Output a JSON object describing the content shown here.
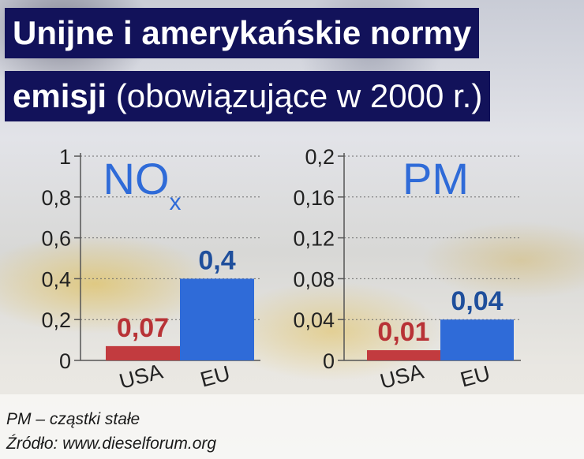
{
  "title": {
    "line1": "Unijne i amerykańskie normy",
    "line2_bold": "emisji",
    "line2_rest": "(obowiązujące w 2000 r.)"
  },
  "colors": {
    "title_bg": "#12125a",
    "usa_bar": "#c23b3f",
    "eu_bar": "#2f6bd8",
    "usa_label": "#b83236",
    "eu_label": "#1f4f9c",
    "chart_title": "#2f6bd8"
  },
  "chart_data": [
    {
      "type": "bar",
      "title": "NO",
      "title_subscript": "x",
      "categories": [
        "USA",
        "EU"
      ],
      "values": [
        0.07,
        0.4
      ],
      "value_labels": [
        "0,07",
        "0,4"
      ],
      "yticks": [
        "0",
        "0,2",
        "0,4",
        "0,6",
        "0,8",
        "1"
      ],
      "ylim": [
        0,
        1
      ],
      "grid": true
    },
    {
      "type": "bar",
      "title": "PM",
      "categories": [
        "USA",
        "EU"
      ],
      "values": [
        0.01,
        0.04
      ],
      "value_labels": [
        "0,01",
        "0,04"
      ],
      "yticks": [
        "0",
        "0,04",
        "0,08",
        "0,12",
        "0,16",
        "0,2"
      ],
      "ylim": [
        0,
        0.2
      ],
      "grid": true
    }
  ],
  "footnotes": {
    "pm_note": "PM – cząstki stałe",
    "source": "Źródło: www.dieselforum.org"
  }
}
